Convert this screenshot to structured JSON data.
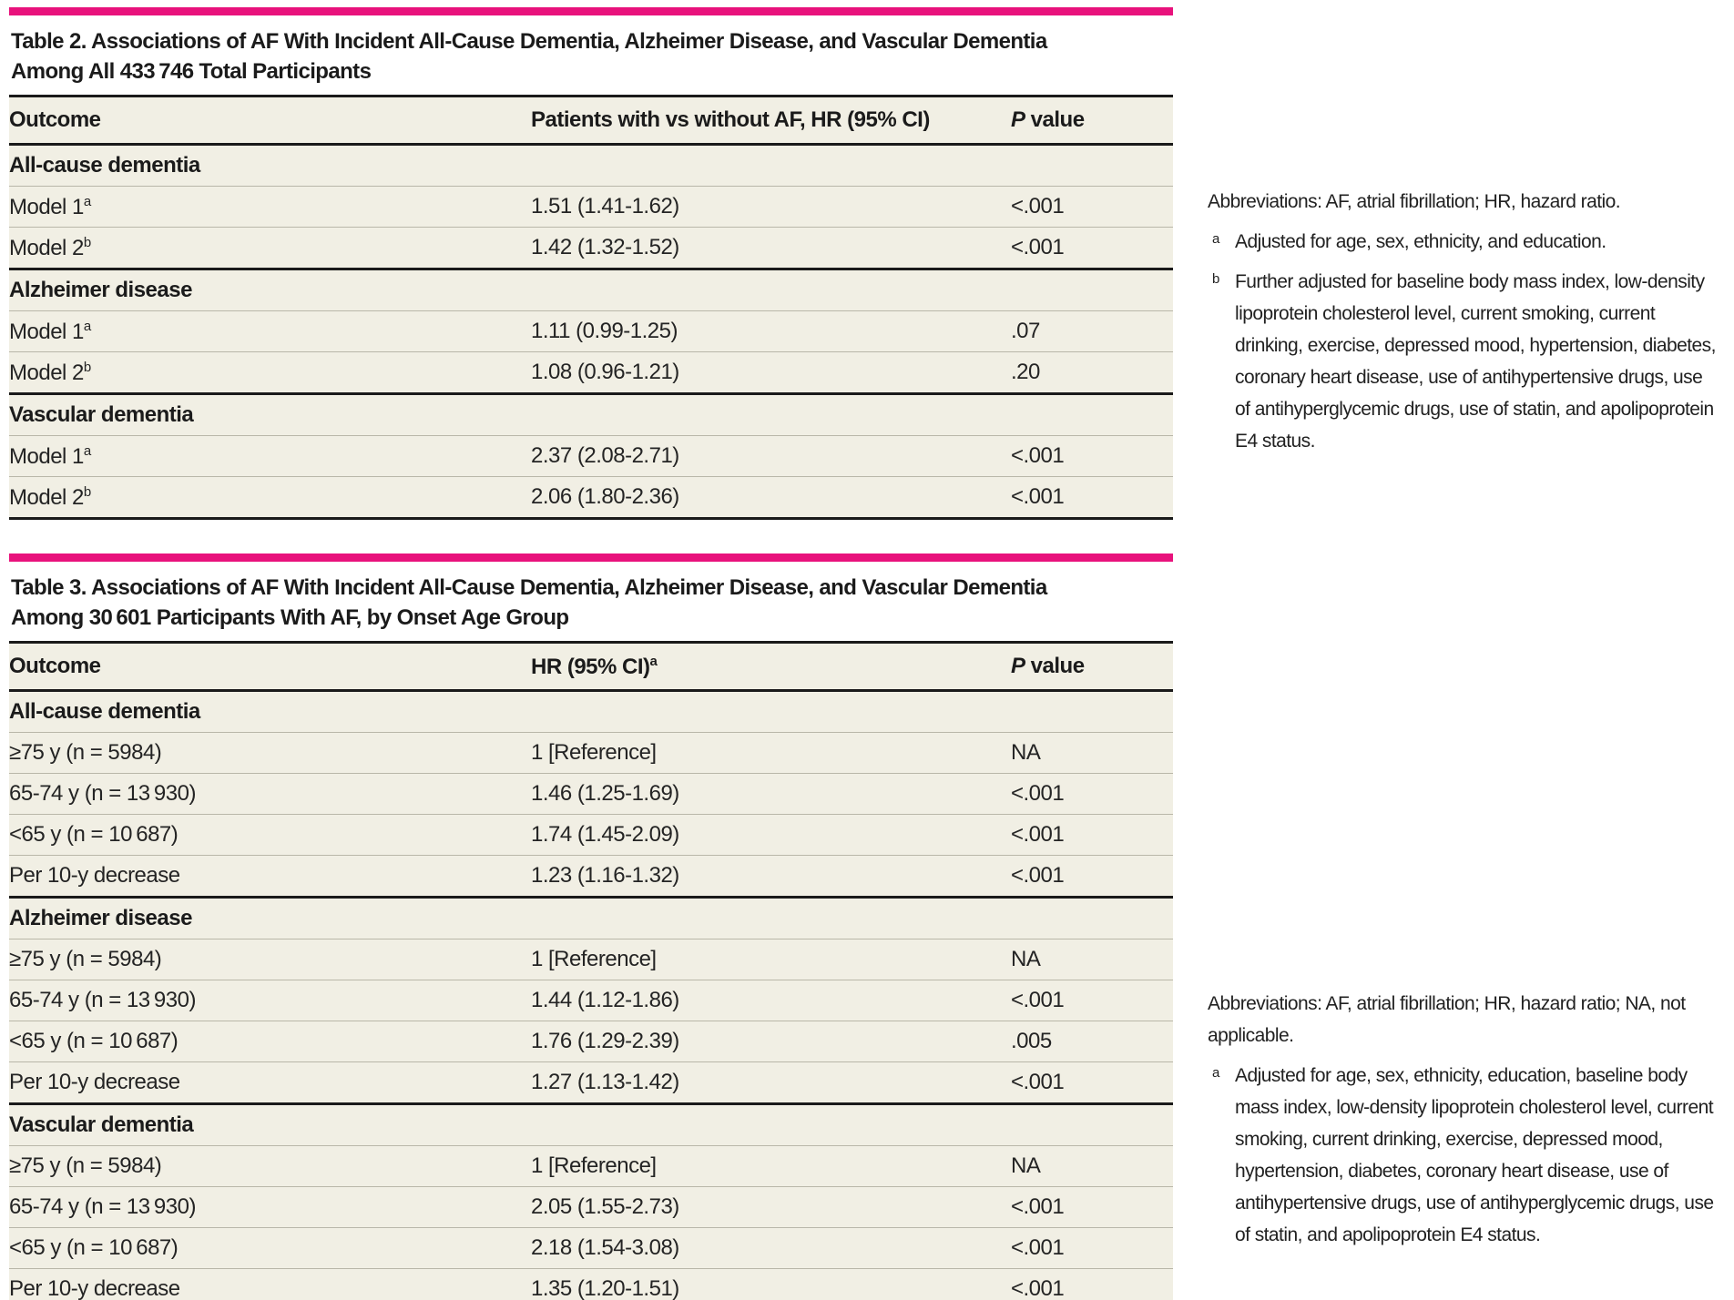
{
  "accent_color": "#E8127C",
  "table2": {
    "title_line1": "Table 2. Associations of AF With Incident All-Cause Dementia, Alzheimer Disease, and Vascular Dementia",
    "title_line2": "Among All 433 746 Total Participants",
    "columns": [
      "Outcome",
      "Patients with vs without AF, HR (95% CI)",
      "P value"
    ],
    "sections": [
      {
        "label": "All-cause dementia",
        "rows": [
          {
            "outcome": "Model 1",
            "sup": "a",
            "hr": "1.51 (1.41-1.62)",
            "p": "<.001"
          },
          {
            "outcome": "Model 2",
            "sup": "b",
            "hr": "1.42 (1.32-1.52)",
            "p": "<.001"
          }
        ]
      },
      {
        "label": "Alzheimer disease",
        "rows": [
          {
            "outcome": "Model 1",
            "sup": "a",
            "hr": "1.11 (0.99-1.25)",
            "p": ".07"
          },
          {
            "outcome": "Model 2",
            "sup": "b",
            "hr": "1.08 (0.96-1.21)",
            "p": ".20"
          }
        ]
      },
      {
        "label": "Vascular dementia",
        "rows": [
          {
            "outcome": "Model 1",
            "sup": "a",
            "hr": "2.37 (2.08-2.71)",
            "p": "<.001"
          },
          {
            "outcome": "Model 2",
            "sup": "b",
            "hr": "2.06 (1.80-2.36)",
            "p": "<.001"
          }
        ]
      }
    ],
    "footnotes": {
      "abbreviations": "Abbreviations: AF, atrial fibrillation; HR, hazard ratio.",
      "items": [
        {
          "sup": "a",
          "text": "Adjusted for age, sex, ethnicity, and education."
        },
        {
          "sup": "b",
          "text": "Further adjusted for baseline body mass index, low-density lipoprotein cholesterol level, current smoking, current drinking, exercise, depressed mood, hypertension, diabetes, coronary heart disease, use of antihypertensive drugs, use of antihyperglycemic drugs, use of statin, and apolipoprotein E4 status."
        }
      ]
    }
  },
  "table3": {
    "title_line1": "Table 3. Associations of AF With Incident All-Cause Dementia, Alzheimer Disease, and Vascular Dementia",
    "title_line2": "Among 30 601 Participants With AF, by Onset Age Group",
    "columns": [
      "Outcome",
      "HR (95% CI)",
      "P value"
    ],
    "col2_sup": "a",
    "sections": [
      {
        "label": "All-cause dementia",
        "rows": [
          {
            "outcome": "≥75 y (n = 5984)",
            "hr": "1 [Reference]",
            "p": "NA"
          },
          {
            "outcome": "65-74 y (n = 13 930)",
            "hr": "1.46 (1.25-1.69)",
            "p": "<.001"
          },
          {
            "outcome": "<65 y (n = 10 687)",
            "hr": "1.74 (1.45-2.09)",
            "p": "<.001"
          },
          {
            "outcome": "Per 10-y decrease",
            "hr": "1.23 (1.16-1.32)",
            "p": "<.001"
          }
        ]
      },
      {
        "label": "Alzheimer disease",
        "rows": [
          {
            "outcome": "≥75 y (n = 5984)",
            "hr": "1 [Reference]",
            "p": "NA"
          },
          {
            "outcome": "65-74 y (n = 13 930)",
            "hr": "1.44 (1.12-1.86)",
            "p": "<.001"
          },
          {
            "outcome": "<65 y (n = 10 687)",
            "hr": "1.76 (1.29-2.39)",
            "p": ".005"
          },
          {
            "outcome": "Per 10-y decrease",
            "hr": "1.27 (1.13-1.42)",
            "p": "<.001"
          }
        ]
      },
      {
        "label": "Vascular dementia",
        "rows": [
          {
            "outcome": "≥75 y (n = 5984)",
            "hr": "1 [Reference]",
            "p": "NA"
          },
          {
            "outcome": "65-74 y (n = 13 930)",
            "hr": "2.05 (1.55-2.73)",
            "p": "<.001"
          },
          {
            "outcome": "<65 y (n = 10 687)",
            "hr": "2.18 (1.54-3.08)",
            "p": "<.001"
          },
          {
            "outcome": "Per 10-y decrease",
            "hr": "1.35 (1.20-1.51)",
            "p": "<.001"
          }
        ]
      }
    ],
    "footnotes": {
      "abbreviations": "Abbreviations: AF, atrial fibrillation; HR, hazard ratio; NA, not applicable.",
      "items": [
        {
          "sup": "a",
          "text": "Adjusted for age, sex, ethnicity, education, baseline body mass index, low-density lipoprotein cholesterol level, current smoking, current drinking, exercise, depressed mood, hypertension, diabetes, coronary heart disease, use of antihypertensive drugs, use of antihyperglycemic drugs, use of statin, and apolipoprotein E4 status."
        }
      ]
    }
  }
}
